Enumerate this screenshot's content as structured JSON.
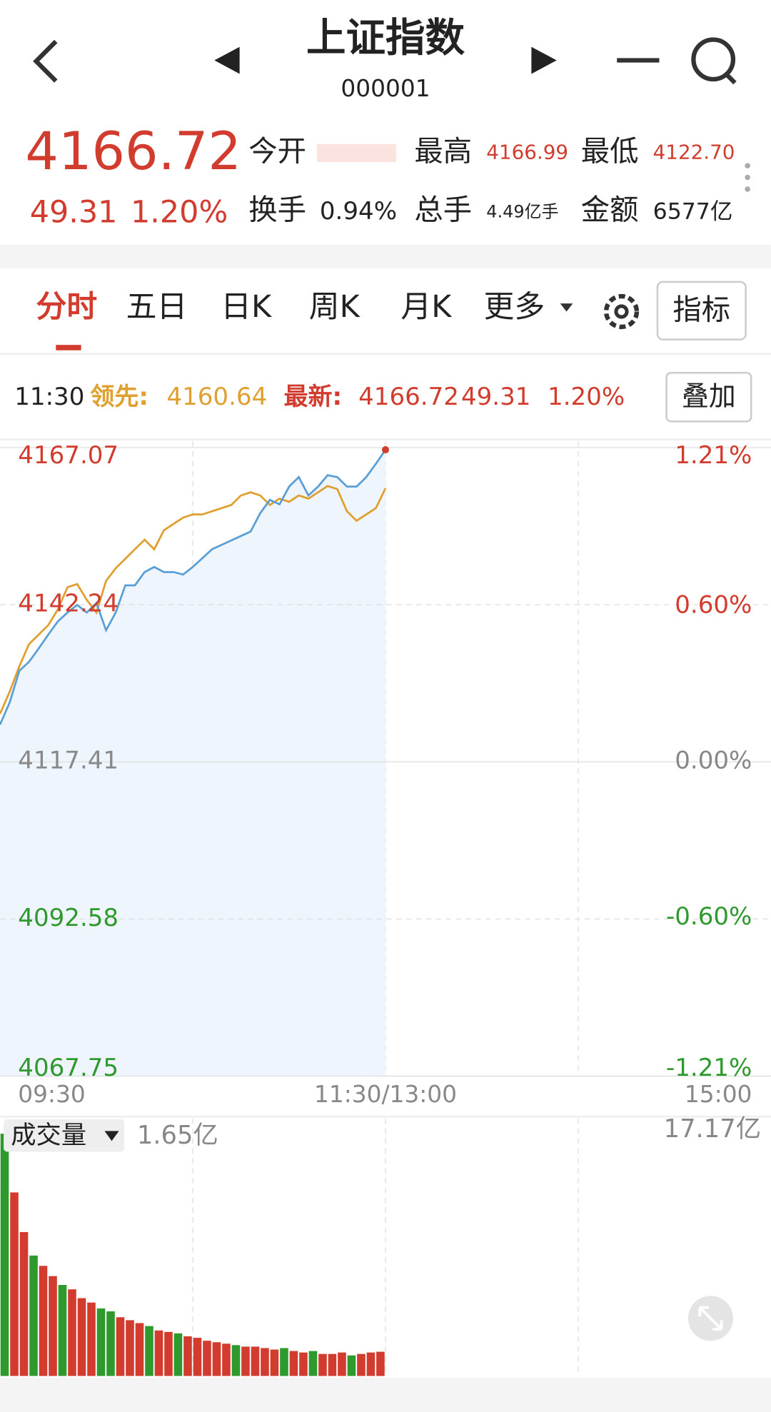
{
  "header": {
    "title": "上证指数",
    "code": "000001"
  },
  "quote": {
    "price": "4166.72",
    "change": "49.31",
    "change_pct": "1.20%",
    "open_label": "今开",
    "high_label": "最高",
    "high": "4166.99",
    "low_label": "最低",
    "low": "4122.70",
    "turnover_label": "换手",
    "turnover": "0.94%",
    "volume_label": "总手",
    "volume": "4.49亿手",
    "amount_label": "金额",
    "amount": "6577亿"
  },
  "tabs": [
    "分时",
    "五日",
    "日K",
    "周K",
    "月K",
    "更多"
  ],
  "indicator_button": "指标",
  "info_bar": {
    "time": "11:30",
    "lead_label": "领先:",
    "lead": "4160.64",
    "latest_label": "最新:",
    "latest": "4166.72",
    "change": "49.31",
    "change_pct": "1.20%"
  },
  "overlay_button": "叠加",
  "chart_data": {
    "type": "line",
    "grid": true,
    "area": true,
    "x": [
      0,
      3,
      6,
      9,
      12,
      15,
      18,
      21,
      24,
      27,
      30,
      33,
      36,
      39,
      42,
      45,
      48,
      51,
      54,
      57,
      60,
      63,
      66,
      69,
      72,
      75,
      78,
      81,
      84,
      87,
      90,
      93,
      96,
      99,
      102,
      105,
      108,
      111,
      114,
      117,
      120
    ],
    "xlim": [
      0,
      240
    ],
    "xticks": [
      {
        "value": 0,
        "label": "09:30"
      },
      {
        "value": 120,
        "label": "11:30/13:00"
      },
      {
        "value": 240,
        "label": "15:00"
      }
    ],
    "ylim": [
      4067.75,
      4167.07
    ],
    "yticks": [
      4167.07,
      4142.24,
      4117.41,
      4092.58,
      4067.75
    ],
    "y2lim": [
      -1.21,
      1.21
    ],
    "y2ticks": [
      {
        "value": 1.21,
        "label": "1.21%"
      },
      {
        "value": 0.6,
        "label": "0.60%"
      },
      {
        "value": 0,
        "label": "0.00%"
      },
      {
        "value": -0.6,
        "label": "-0.60%"
      },
      {
        "value": -1.21,
        "label": "-1.21%"
      }
    ],
    "series": [
      {
        "color": "#5a9fd6",
        "values": [
          4123.3,
          4126.8,
          4131.8,
          4133.2,
          4135.3,
          4137.5,
          4139.6,
          4141.0,
          4142.2,
          4141.0,
          4142.5,
          4138.2,
          4141.0,
          4145.3,
          4145.3,
          4147.4,
          4148.2,
          4147.4,
          4147.4,
          4147.0,
          4148.2,
          4149.6,
          4151.0,
          4151.7,
          4152.4,
          4153.1,
          4153.8,
          4156.7,
          4158.8,
          4158.1,
          4160.9,
          4162.4,
          4159.5,
          4160.9,
          4162.7,
          4162.4,
          4160.9,
          4160.9,
          4162.4,
          4164.5,
          4166.72
        ]
      },
      {
        "color": "#e0a030",
        "values": [
          4125,
          4128.5,
          4132.5,
          4136,
          4137.5,
          4139,
          4141.5,
          4145,
          4145.5,
          4143,
          4141,
          4146,
          4148,
          4149.5,
          4151,
          4152.5,
          4151,
          4154,
          4155,
          4156,
          4156.5,
          4156.5,
          4157,
          4157.5,
          4158,
          4159.5,
          4160,
          4159.5,
          4158,
          4159,
          4158.5,
          4159.5,
          4159,
          4160,
          4161,
          4160.5,
          4157,
          4155.5,
          4156.5,
          4157.5,
          4160.64
        ]
      }
    ]
  },
  "volume_chart": {
    "type": "bar",
    "label": "成交量",
    "current": "1.65亿",
    "x": [
      0,
      3,
      6,
      9,
      12,
      15,
      18,
      21,
      24,
      27,
      30,
      33,
      36,
      39,
      42,
      45,
      48,
      51,
      54,
      57,
      60,
      63,
      66,
      69,
      72,
      75,
      78,
      81,
      84,
      87,
      90,
      93,
      96,
      99,
      102,
      105,
      108,
      111,
      114,
      117
    ],
    "values": [
      16.5,
      12.5,
      9.8,
      8.2,
      7.5,
      6.8,
      6.2,
      5.9,
      5.3,
      5.0,
      4.6,
      4.4,
      4.0,
      3.8,
      3.6,
      3.4,
      3.1,
      3.0,
      2.9,
      2.7,
      2.6,
      2.4,
      2.3,
      2.2,
      2.1,
      2.0,
      2.0,
      1.9,
      1.8,
      1.9,
      1.7,
      1.6,
      1.7,
      1.5,
      1.5,
      1.6,
      1.4,
      1.5,
      1.6,
      1.65
    ],
    "colors": [
      "#2e9a2e",
      "#d23c2e",
      "#d23c2e",
      "#2e9a2e",
      "#d23c2e",
      "#d23c2e",
      "#2e9a2e",
      "#d23c2e",
      "#d23c2e",
      "#d23c2e",
      "#2e9a2e",
      "#2e9a2e",
      "#d23c2e",
      "#d23c2e",
      "#d23c2e",
      "#2e9a2e",
      "#d23c2e",
      "#d23c2e",
      "#2e9a2e",
      "#d23c2e",
      "#d23c2e",
      "#d23c2e",
      "#d23c2e",
      "#d23c2e",
      "#2e9a2e",
      "#d23c2e",
      "#d23c2e",
      "#d23c2e",
      "#d23c2e",
      "#2e9a2e",
      "#d23c2e",
      "#d23c2e",
      "#2e9a2e",
      "#d23c2e",
      "#d23c2e",
      "#d23c2e",
      "#2e9a2e",
      "#d23c2e",
      "#d23c2e",
      "#d23c2e"
    ],
    "ylim": [
      0,
      17.17
    ],
    "yticks": [
      {
        "value": 17.17,
        "label": "17.17亿"
      }
    ]
  }
}
